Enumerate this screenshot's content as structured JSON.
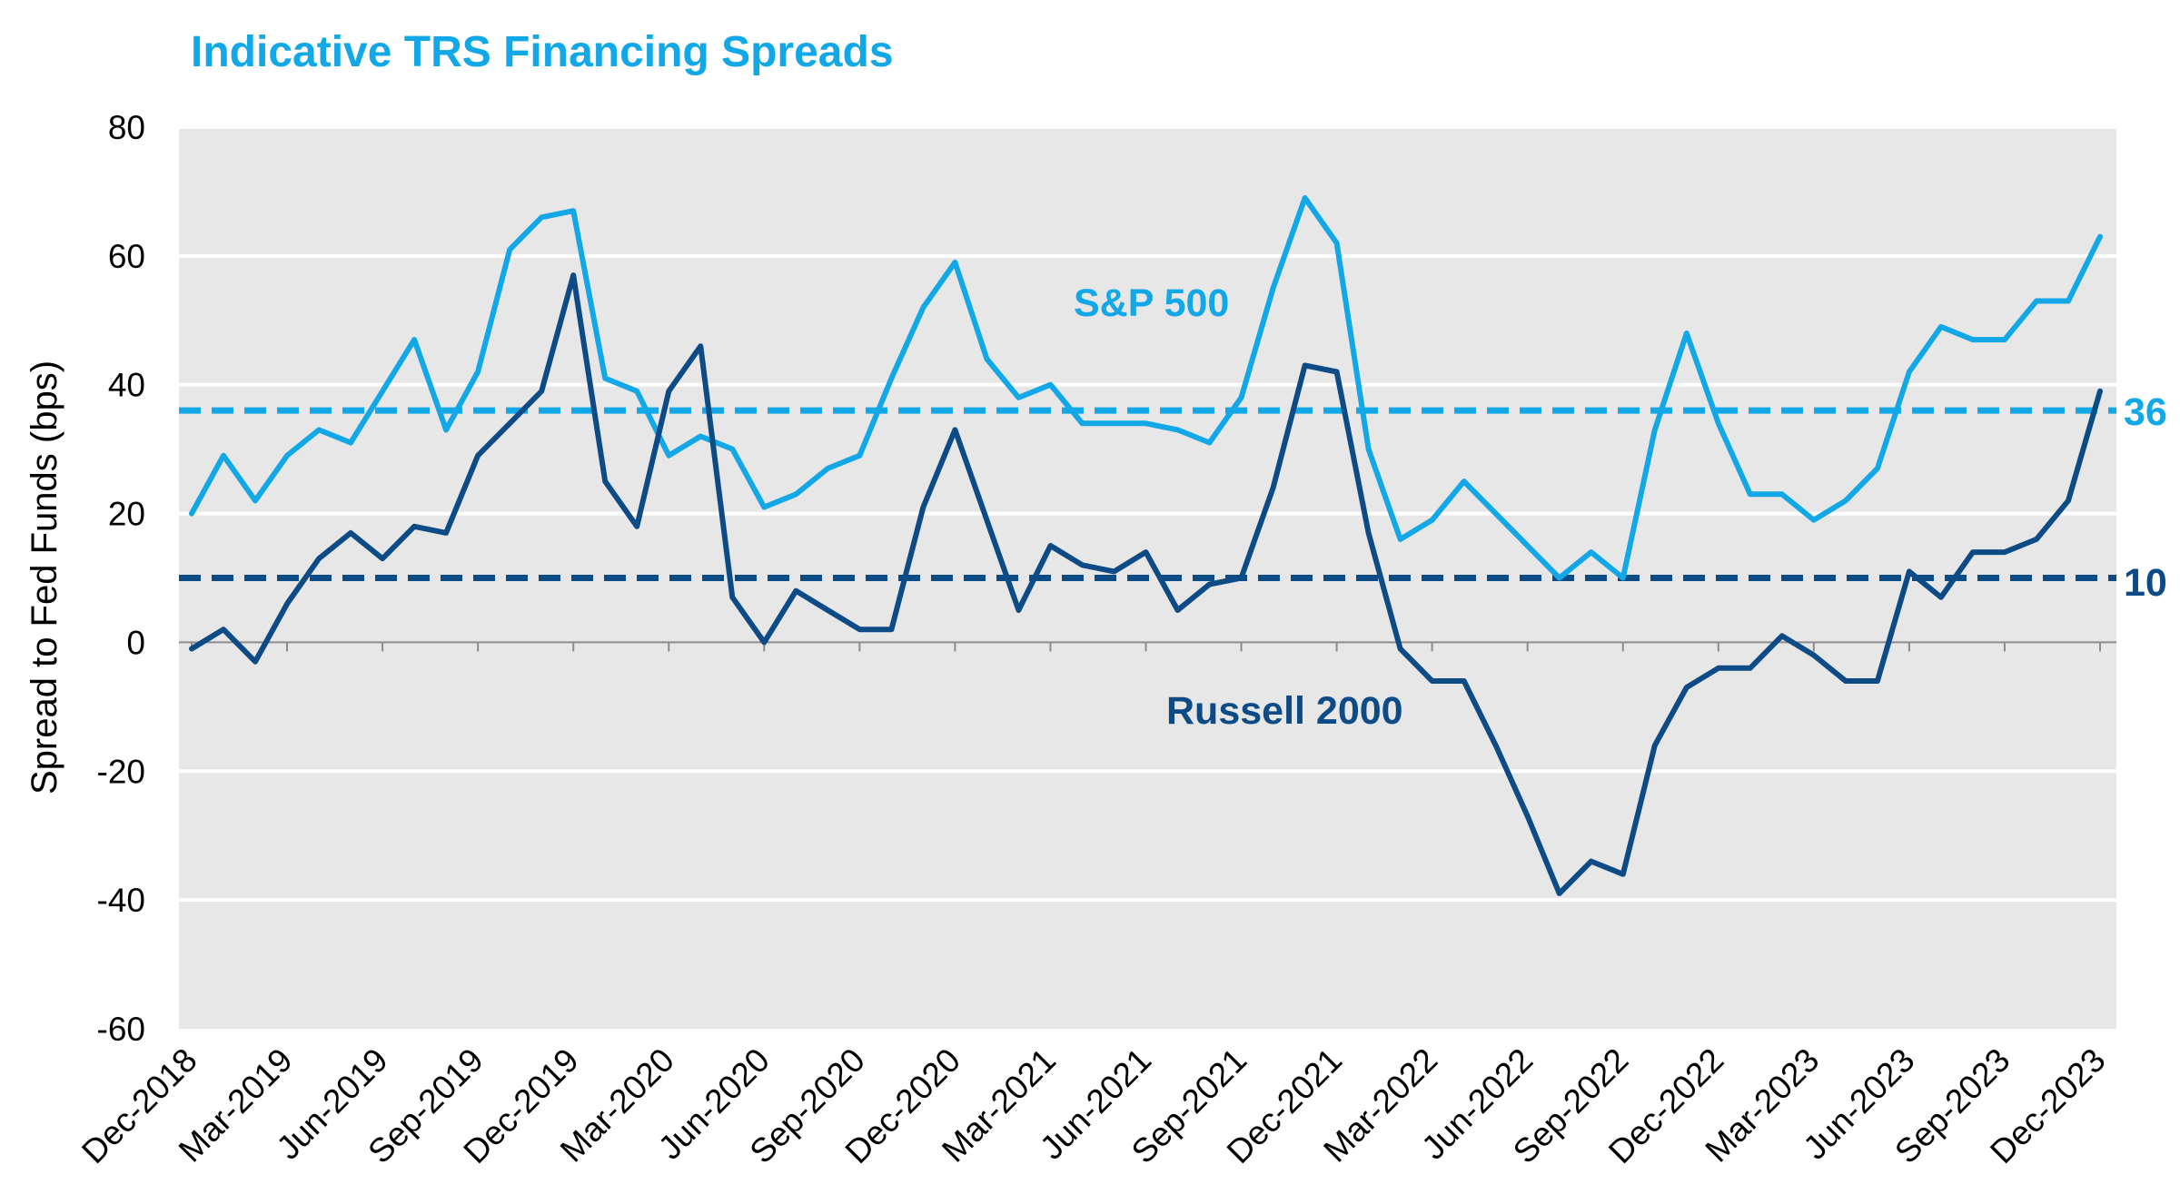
{
  "chart_data": {
    "type": "line",
    "title": "Indicative TRS Financing Spreads",
    "ylabel": "Spread to Fed Funds (bps)",
    "xlabel": "",
    "ylim": [
      -60,
      80
    ],
    "yticks": [
      80,
      60,
      40,
      20,
      0,
      -20,
      -40,
      -60
    ],
    "grid": true,
    "x_tick_labels": [
      "Dec-2018",
      "Mar-2019",
      "Jun-2019",
      "Sep-2019",
      "Dec-2019",
      "Mar-2020",
      "Jun-2020",
      "Sep-2020",
      "Dec-2020",
      "Mar-2021",
      "Jun-2021",
      "Sep-2021",
      "Dec-2021",
      "Mar-2022",
      "Jun-2022",
      "Sep-2022",
      "Dec-2022",
      "Mar-2023",
      "Jun-2023",
      "Sep-2023",
      "Dec-2023"
    ],
    "x": [
      "2018-12",
      "2019-01",
      "2019-02",
      "2019-03",
      "2019-04",
      "2019-05",
      "2019-06",
      "2019-07",
      "2019-08",
      "2019-09",
      "2019-10",
      "2019-11",
      "2019-12",
      "2020-01",
      "2020-02",
      "2020-03",
      "2020-04",
      "2020-05",
      "2020-06",
      "2020-07",
      "2020-08",
      "2020-09",
      "2020-10",
      "2020-11",
      "2020-12",
      "2021-01",
      "2021-02",
      "2021-03",
      "2021-04",
      "2021-05",
      "2021-06",
      "2021-07",
      "2021-08",
      "2021-09",
      "2021-10",
      "2021-11",
      "2021-12",
      "2022-01",
      "2022-02",
      "2022-03",
      "2022-04",
      "2022-05",
      "2022-06",
      "2022-07",
      "2022-08",
      "2022-09",
      "2022-10",
      "2022-11",
      "2022-12",
      "2023-01",
      "2023-02",
      "2023-03",
      "2023-04",
      "2023-05",
      "2023-06",
      "2023-07",
      "2023-08",
      "2023-09",
      "2023-10",
      "2023-11",
      "2023-12"
    ],
    "series": [
      {
        "name": "S&P 500",
        "color": "#12a7e6",
        "values": [
          20,
          29,
          22,
          29,
          33,
          31,
          39,
          47,
          33,
          42,
          61,
          66,
          67,
          41,
          39,
          29,
          32,
          30,
          21,
          23,
          27,
          29,
          41,
          52,
          59,
          44,
          38,
          40,
          34,
          34,
          34,
          33,
          31,
          38,
          55,
          69,
          62,
          30,
          16,
          19,
          25,
          20,
          15,
          10,
          14,
          10,
          33,
          48,
          34,
          23,
          23,
          19,
          22,
          27,
          42,
          49,
          47,
          47,
          53,
          53,
          63
        ]
      },
      {
        "name": "Russell 2000",
        "color": "#0d4b86",
        "values": [
          -1,
          2,
          -3,
          6,
          13,
          17,
          13,
          18,
          17,
          29,
          34,
          39,
          57,
          25,
          18,
          39,
          46,
          7,
          0,
          8,
          5,
          2,
          2,
          21,
          33,
          19,
          5,
          15,
          12,
          11,
          14,
          5,
          9,
          10,
          24,
          43,
          42,
          17,
          -1,
          -6,
          -6,
          -16,
          -27,
          -39,
          -34,
          -36,
          -16,
          -7,
          -4,
          -4,
          1,
          -2,
          -6,
          -6,
          11,
          7,
          14,
          14,
          16,
          22,
          39
        ]
      }
    ],
    "reference_lines": [
      {
        "value": 36,
        "label": "36",
        "color": "#12a7e6",
        "style": "dashed"
      },
      {
        "value": 10,
        "label": "10",
        "color": "#0d4b86",
        "style": "dashed"
      }
    ],
    "annotations": [
      {
        "text": "S&P 500",
        "color": "#12a7e6"
      },
      {
        "text": "Russell 2000",
        "color": "#0d4b86"
      }
    ],
    "plot_background": "#e6e6e6"
  }
}
